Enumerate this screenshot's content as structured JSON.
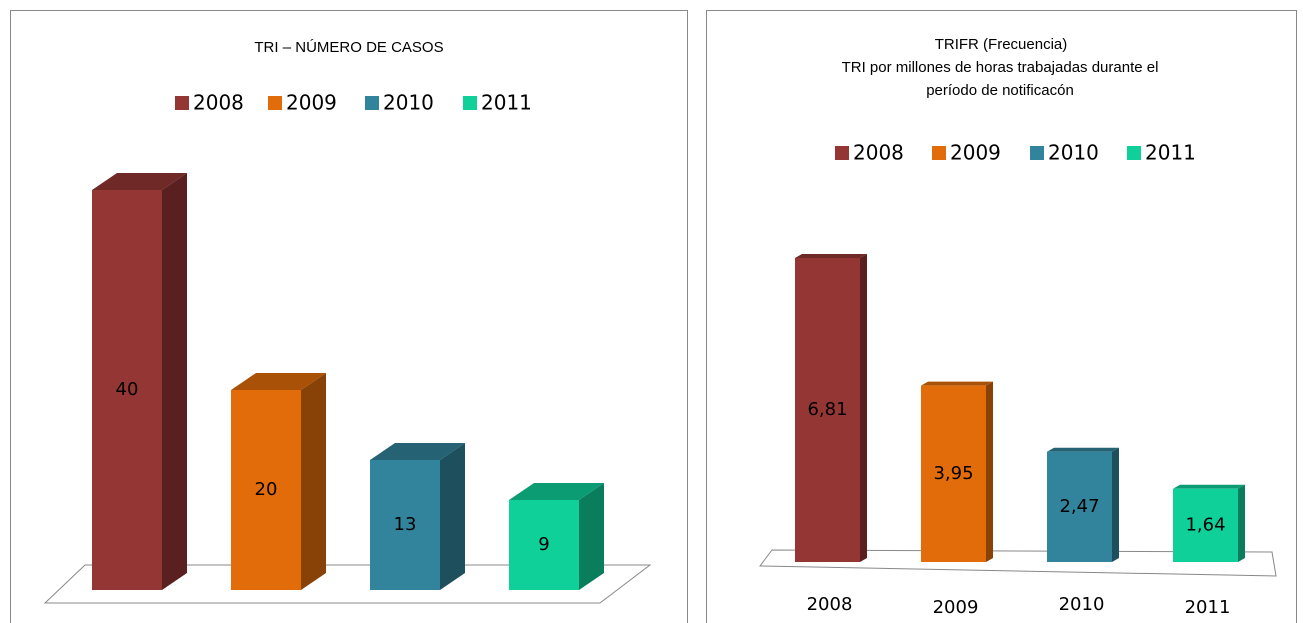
{
  "chart_data": [
    {
      "type": "bar3d",
      "title": "TRI – NÚMERO DE CASOS",
      "categories": [
        "2008",
        "2009",
        "2010",
        "2011"
      ],
      "values": [
        40,
        20,
        13,
        9
      ],
      "colors": [
        "#943634",
        "#e36c0a",
        "#31849b",
        "#10d09a"
      ]
    },
    {
      "type": "bar3d",
      "title": "TRIFR (Frecuencia)",
      "subtitle": "TRI por millones de horas trabajadas durante el período de notificacón",
      "categories": [
        "2008",
        "2009",
        "2010",
        "2011"
      ],
      "values": [
        6.81,
        3.95,
        2.47,
        1.64
      ],
      "value_labels": [
        "6,81",
        "3,95",
        "2,47",
        "1,64"
      ],
      "colors": [
        "#943634",
        "#e36c0a",
        "#31849b",
        "#10d09a"
      ]
    }
  ]
}
